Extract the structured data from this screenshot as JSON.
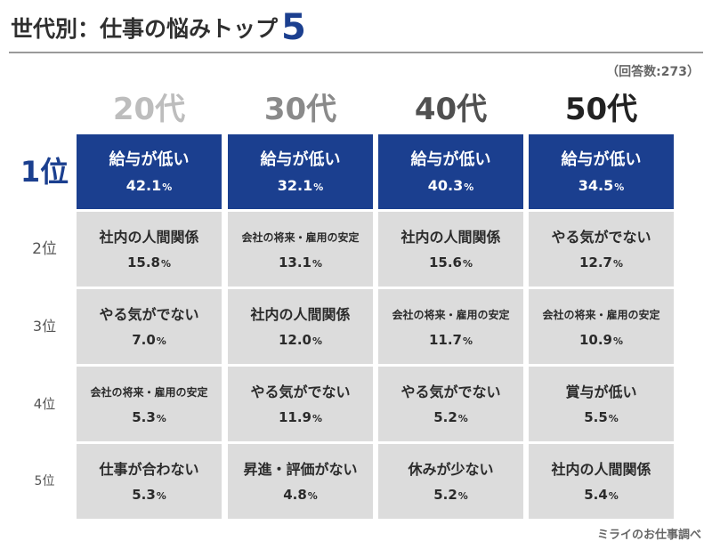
{
  "title": {
    "text": "世代別：仕事の悩みトップ",
    "number": "5"
  },
  "note": "（回答数:273）",
  "source": "ミライのお仕事調べ",
  "colors": {
    "accent": "#1b3f8f",
    "cell": "#dcdcdc"
  },
  "chart_data": {
    "type": "table",
    "title": "世代別：仕事の悩みトップ5",
    "unit": "%",
    "columns": [
      "20代",
      "30代",
      "40代",
      "50代"
    ],
    "column_colors": [
      "#bdbdbd",
      "#8a8a8a",
      "#505050",
      "#222222"
    ],
    "ranks": [
      "1位",
      "2位",
      "3位",
      "4位",
      "5位"
    ],
    "rows": [
      [
        {
          "label": "給与が低い",
          "value": "42.1"
        },
        {
          "label": "給与が低い",
          "value": "32.1"
        },
        {
          "label": "給与が低い",
          "value": "40.3"
        },
        {
          "label": "給与が低い",
          "value": "34.5"
        }
      ],
      [
        {
          "label": "社内の人間関係",
          "value": "15.8"
        },
        {
          "label": "会社の将来・雇用の安定",
          "value": "13.1"
        },
        {
          "label": "社内の人間関係",
          "value": "15.6"
        },
        {
          "label": "やる気がでない",
          "value": "12.7"
        }
      ],
      [
        {
          "label": "やる気がでない",
          "value": "7.0"
        },
        {
          "label": "社内の人間関係",
          "value": "12.0"
        },
        {
          "label": "会社の将来・雇用の安定",
          "value": "11.7"
        },
        {
          "label": "会社の将来・雇用の安定",
          "value": "10.9"
        }
      ],
      [
        {
          "label": "会社の将来・雇用の安定",
          "value": "5.3"
        },
        {
          "label": "やる気がでない",
          "value": "11.9"
        },
        {
          "label": "やる気がでない",
          "value": "5.2"
        },
        {
          "label": "賞与が低い",
          "value": "5.5"
        }
      ],
      [
        {
          "label": "仕事が合わない",
          "value": "5.3"
        },
        {
          "label": "昇進・評価がない",
          "value": "4.8"
        },
        {
          "label": "休みが少ない",
          "value": "5.2"
        },
        {
          "label": "社内の人間関係",
          "value": "5.4"
        }
      ]
    ]
  }
}
